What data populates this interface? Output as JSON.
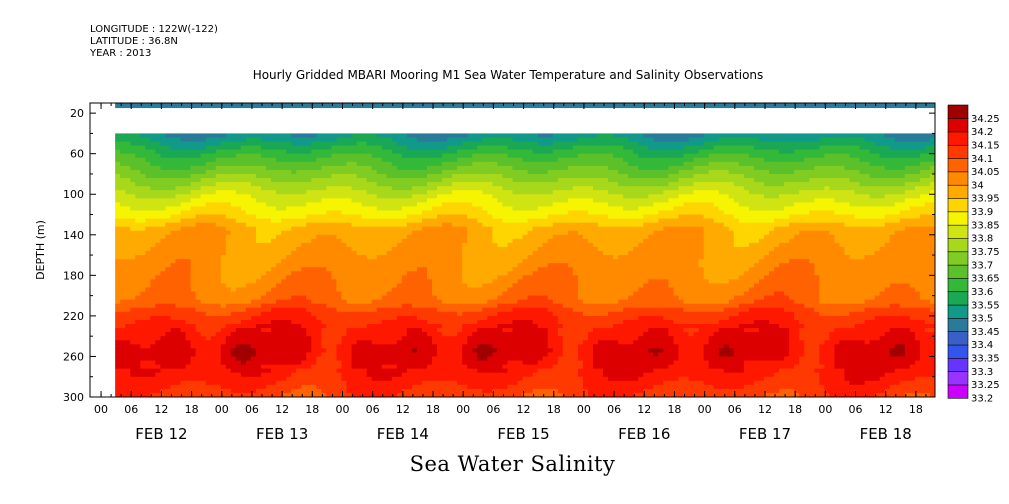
{
  "header": {
    "longitude": "LONGITUDE : 122W(-122)",
    "latitude": "LATITUDE : 36.8N",
    "year": "YEAR : 2013"
  },
  "chart_data": {
    "type": "heatmap",
    "title": "Hourly Gridded MBARI Mooring M1 Sea Water Temperature and Salinity Observations",
    "footer_label": "Sea Water Salinity",
    "ylabel": "DEPTH (m)",
    "y_inverted": true,
    "ylim": [
      300,
      10
    ],
    "yticks": [
      20,
      60,
      100,
      140,
      180,
      220,
      260,
      300
    ],
    "x_hour_labels": [
      "00",
      "06",
      "12",
      "18",
      "00",
      "06",
      "12",
      "18",
      "00",
      "06",
      "12",
      "18",
      "00",
      "06",
      "12",
      "18",
      "00",
      "06",
      "12",
      "18",
      "00",
      "06",
      "12",
      "18",
      "00",
      "06",
      "12",
      "18"
    ],
    "x_day_labels": [
      "FEB 12",
      "FEB 13",
      "FEB 14",
      "FEB 15",
      "FEB 16",
      "FEB 17",
      "FEB 18"
    ],
    "data_start": "FEB 12 05:00",
    "colorbar": {
      "levels": [
        33.2,
        33.25,
        33.3,
        33.35,
        33.4,
        33.45,
        33.5,
        33.55,
        33.6,
        33.65,
        33.7,
        33.75,
        33.8,
        33.85,
        33.9,
        33.95,
        34,
        34.05,
        34.1,
        34.15,
        34.2,
        34.25
      ],
      "colors": [
        "#cc00ff",
        "#9933ff",
        "#6633ff",
        "#3355ee",
        "#3a60c8",
        "#2a7a9a",
        "#11998a",
        "#1aa855",
        "#33b83a",
        "#5cc02a",
        "#80cc22",
        "#a8d81c",
        "#d0e414",
        "#f6f400",
        "#ffd500",
        "#ffaa00",
        "#ff8a00",
        "#ff6200",
        "#ff3a00",
        "#ff1800",
        "#dd0000",
        "#a00000"
      ]
    },
    "depth_profile": [
      {
        "depth": 10,
        "salinity": 33.45
      },
      {
        "depth": 40,
        "salinity": 33.5
      },
      {
        "depth": 60,
        "salinity": 33.62
      },
      {
        "depth": 80,
        "salinity": 33.72
      },
      {
        "depth": 100,
        "salinity": 33.82
      },
      {
        "depth": 120,
        "salinity": 33.9
      },
      {
        "depth": 135,
        "salinity": 33.98
      },
      {
        "depth": 180,
        "salinity": 34.03
      },
      {
        "depth": 205,
        "salinity": 34.06
      },
      {
        "depth": 215,
        "salinity": 34.12
      },
      {
        "depth": 230,
        "salinity": 34.17
      },
      {
        "depth": 255,
        "salinity": 34.22
      },
      {
        "depth": 280,
        "salinity": 34.17
      },
      {
        "depth": 300,
        "salinity": 34.12
      }
    ]
  }
}
